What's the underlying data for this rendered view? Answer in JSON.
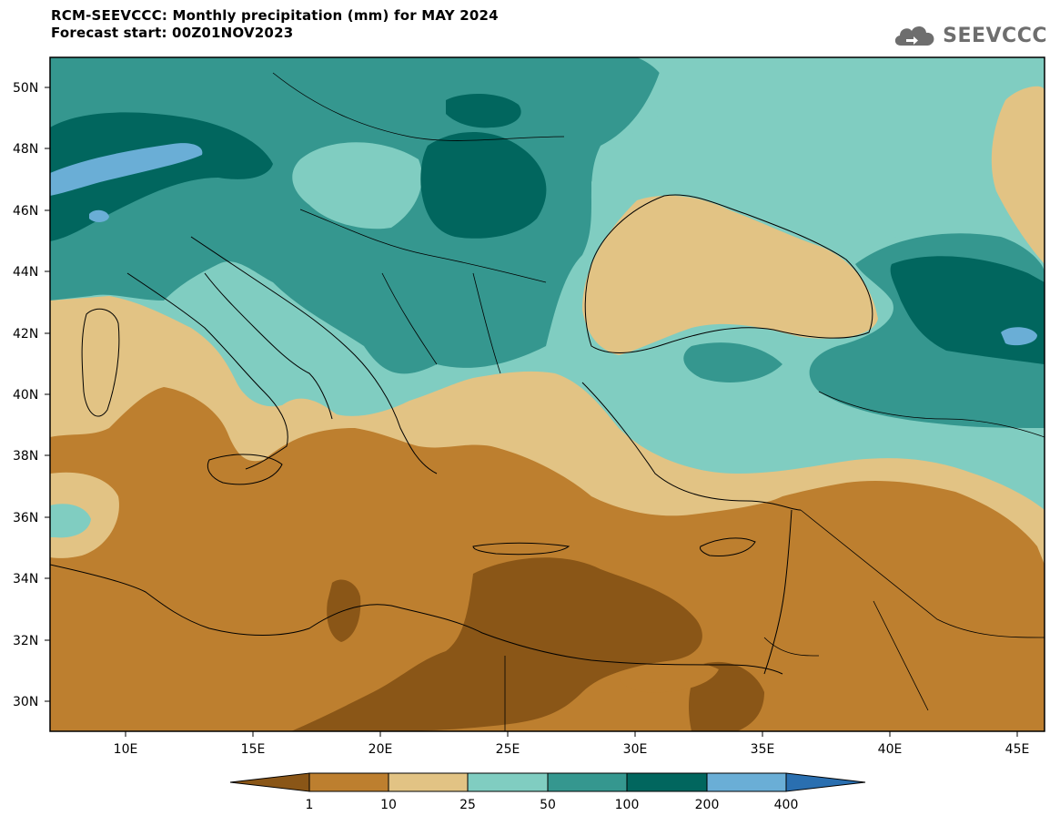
{
  "title": {
    "line1": "RCM-SEEVCCC: Monthly precipitation (mm) for MAY 2024",
    "line2": "Forecast start: 00Z01NOV2023"
  },
  "logo": {
    "text": "SEEVCCC",
    "icon": "cloud-icon"
  },
  "map": {
    "lat_ticks": [
      "50N",
      "48N",
      "46N",
      "44N",
      "42N",
      "40N",
      "38N",
      "36N",
      "34N",
      "32N",
      "30N"
    ],
    "lon_ticks": [
      "10E",
      "15E",
      "20E",
      "25E",
      "30E",
      "35E",
      "40E",
      "45E"
    ],
    "lon_range": [
      7,
      46
    ],
    "lat_range": [
      29,
      51
    ]
  },
  "colorbar": {
    "labels": [
      "1",
      "10",
      "25",
      "50",
      "100",
      "200",
      "400"
    ],
    "colors": [
      "#8a5617",
      "#bd7f2f",
      "#e2c384",
      "#80cdc1",
      "#35978f",
      "#01665e",
      "#6aaed6",
      "#2a6fb0"
    ]
  }
}
